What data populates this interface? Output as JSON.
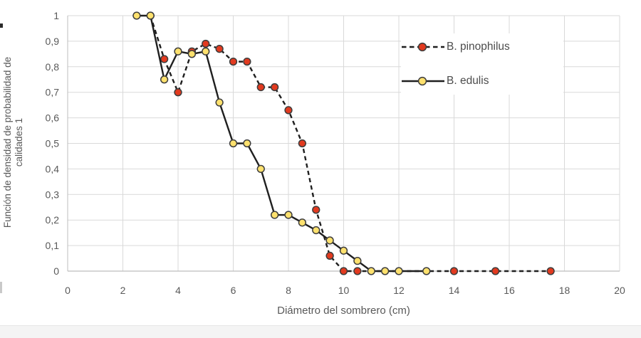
{
  "chart_data": {
    "type": "line",
    "title": "",
    "xlabel": "Diámetro del sombrero (cm)",
    "ylabel": [
      "Función de densidad de probabilidad de",
      "calidades 1"
    ],
    "xlim": [
      0,
      20
    ],
    "ylim": [
      0,
      1
    ],
    "grid": true,
    "legend_position": "inside-top-right",
    "x_ticks": [
      {
        "v": 0,
        "label": "0"
      },
      {
        "v": 2,
        "label": "2"
      },
      {
        "v": 4,
        "label": "4"
      },
      {
        "v": 6,
        "label": "6"
      },
      {
        "v": 8,
        "label": "8"
      },
      {
        "v": 10,
        "label": "10"
      },
      {
        "v": 12,
        "label": "12"
      },
      {
        "v": 14,
        "label": "14"
      },
      {
        "v": 16,
        "label": "16"
      },
      {
        "v": 18,
        "label": "18"
      },
      {
        "v": 20,
        "label": "20"
      }
    ],
    "y_ticks": [
      {
        "v": 0,
        "label": "0"
      },
      {
        "v": 0.1,
        "label": "0,1"
      },
      {
        "v": 0.2,
        "label": "0,2"
      },
      {
        "v": 0.3,
        "label": "0,3"
      },
      {
        "v": 0.4,
        "label": "0,4"
      },
      {
        "v": 0.5,
        "label": "0,5"
      },
      {
        "v": 0.6,
        "label": "0,6"
      },
      {
        "v": 0.7,
        "label": "0,7"
      },
      {
        "v": 0.8,
        "label": "0,8"
      },
      {
        "v": 0.9,
        "label": "0,9"
      },
      {
        "v": 1,
        "label": "1"
      }
    ],
    "series": [
      {
        "name": "B. pinophilus",
        "line": "dashed",
        "marker_color": "#e23a1f",
        "points": [
          [
            3,
            1
          ],
          [
            3.5,
            0.83
          ],
          [
            4,
            0.7
          ],
          [
            4.5,
            0.86
          ],
          [
            5,
            0.89
          ],
          [
            5.5,
            0.87
          ],
          [
            6,
            0.82
          ],
          [
            6.5,
            0.82
          ],
          [
            7,
            0.72
          ],
          [
            7.5,
            0.72
          ],
          [
            8,
            0.63
          ],
          [
            8.5,
            0.5
          ],
          [
            9,
            0.24
          ],
          [
            9.5,
            0.06
          ],
          [
            10,
            0
          ],
          [
            10.5,
            0
          ],
          [
            14,
            0
          ],
          [
            15.5,
            0
          ],
          [
            17.5,
            0
          ]
        ]
      },
      {
        "name": "B. edulis",
        "line": "solid",
        "marker_color": "#fee16e",
        "points": [
          [
            2.5,
            1
          ],
          [
            3,
            1
          ],
          [
            3.5,
            0.75
          ],
          [
            4,
            0.86
          ],
          [
            4.5,
            0.85
          ],
          [
            5,
            0.86
          ],
          [
            5.5,
            0.66
          ],
          [
            6,
            0.5
          ],
          [
            6.5,
            0.5
          ],
          [
            7,
            0.4
          ],
          [
            7.5,
            0.22
          ],
          [
            8,
            0.22
          ],
          [
            8.5,
            0.19
          ],
          [
            9,
            0.16
          ],
          [
            9.5,
            0.12
          ],
          [
            10,
            0.08
          ],
          [
            10.5,
            0.04
          ],
          [
            11,
            0
          ],
          [
            11.5,
            0
          ],
          [
            12,
            0
          ],
          [
            13,
            0
          ]
        ]
      }
    ],
    "colors": {
      "line": "#1f1f1f",
      "marker_outline": "#3d3d3d",
      "grid": "#d9d9d9",
      "axis": "#bdbdbd",
      "tick_text": "#595959",
      "title_text": "#595959",
      "legend_text": "#4c4c4c",
      "background": "#ffffff"
    }
  }
}
